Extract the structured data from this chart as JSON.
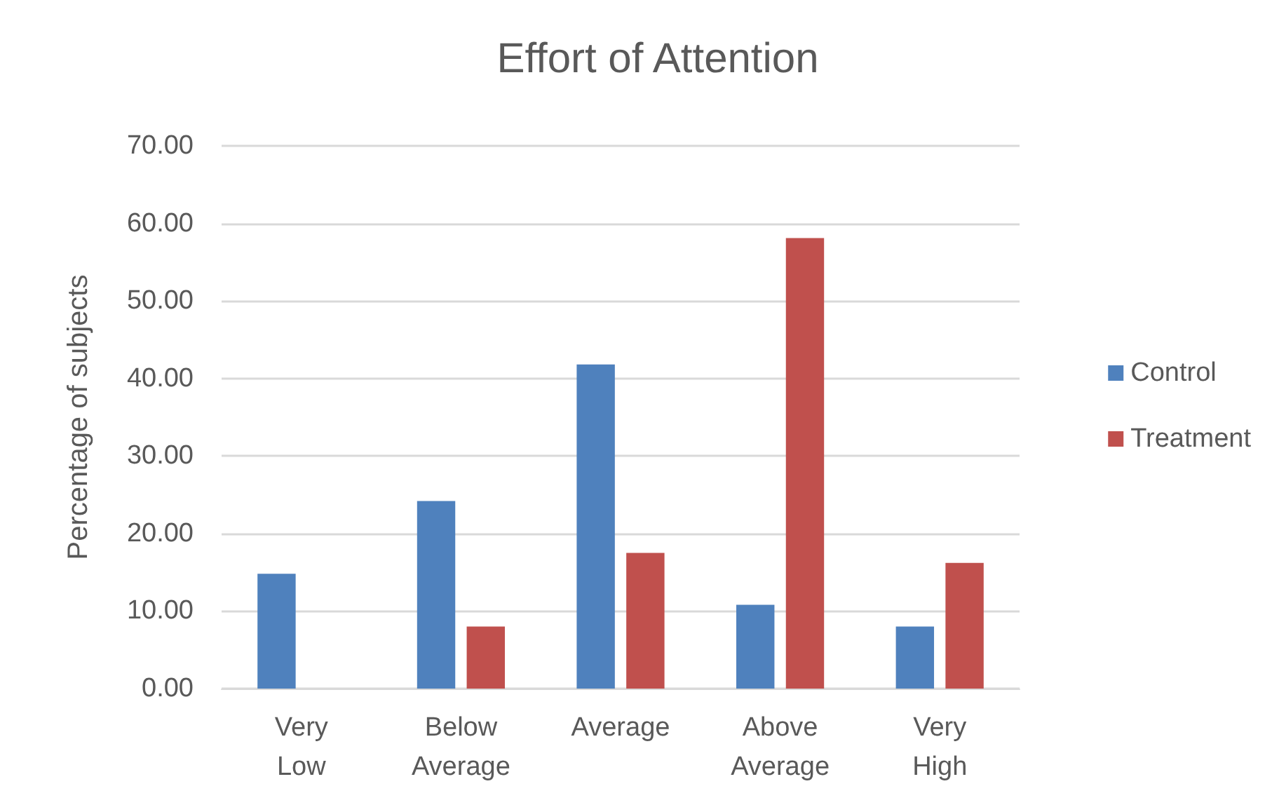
{
  "chart_data": {
    "type": "bar",
    "title": "Effort of Attention",
    "ylabel": "Percentage of subjects",
    "categories": [
      "Very Low",
      "Below Average",
      "Average",
      "Above Average",
      "Very High"
    ],
    "series": [
      {
        "name": "Control",
        "color": "#4f81bd",
        "values": [
          14.8,
          24.2,
          41.8,
          10.8,
          8.0
        ]
      },
      {
        "name": "Treatment",
        "color": "#c0504d",
        "values": [
          0,
          8.0,
          17.5,
          58.1,
          16.2
        ]
      }
    ],
    "ylim": [
      0,
      70
    ],
    "yticks": [
      {
        "value": 0,
        "label": "0.00"
      },
      {
        "value": 10,
        "label": "10.00"
      },
      {
        "value": 20,
        "label": "20.00"
      },
      {
        "value": 30,
        "label": "30.00"
      },
      {
        "value": 40,
        "label": "40.00"
      },
      {
        "value": 50,
        "label": "50.00"
      },
      {
        "value": 60,
        "label": "60.00"
      },
      {
        "value": 70,
        "label": "70.00"
      }
    ],
    "grid": true,
    "legend": "right"
  }
}
